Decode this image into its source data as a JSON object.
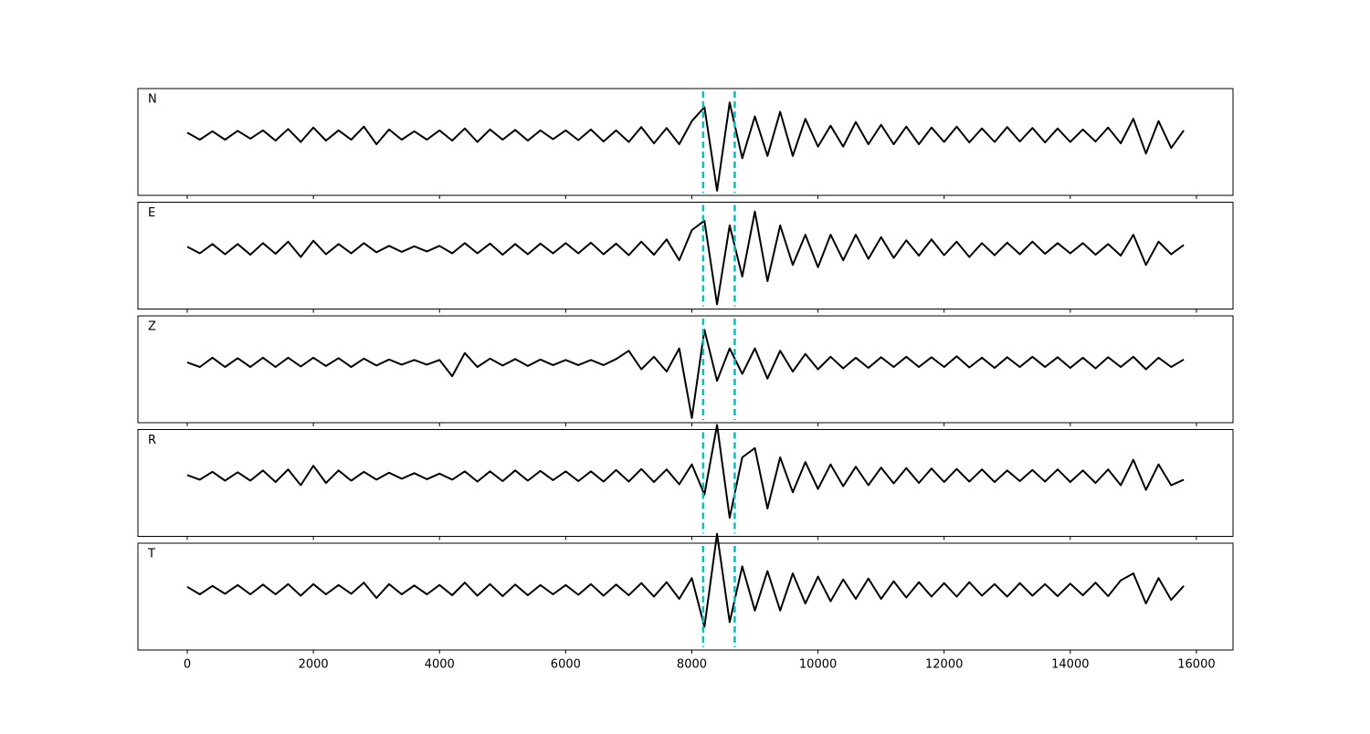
{
  "chart_data": {
    "type": "line",
    "subplots": true,
    "color": "#000000",
    "xlim": [
      -782,
      16580
    ],
    "xticks": [
      0,
      2000,
      4000,
      6000,
      8000,
      10000,
      12000,
      14000,
      16000
    ],
    "ylim": [
      -1.3,
      1.0
    ],
    "vlines": {
      "values": [
        8180,
        8680
      ],
      "color": "#00bfbf",
      "style": "dashed"
    },
    "x": [
      0,
      200,
      400,
      600,
      800,
      1000,
      1200,
      1400,
      1600,
      1800,
      2000,
      2200,
      2400,
      2600,
      2800,
      3000,
      3200,
      3400,
      3600,
      3800,
      4000,
      4200,
      4400,
      4600,
      4800,
      5000,
      5200,
      5400,
      5600,
      5800,
      6000,
      6200,
      6400,
      6600,
      6800,
      7000,
      7200,
      7400,
      7600,
      7800,
      8000,
      8200,
      8400,
      8600,
      8800,
      9000,
      9200,
      9400,
      9600,
      9800,
      10000,
      10200,
      10400,
      10600,
      10800,
      11000,
      11200,
      11400,
      11600,
      11800,
      12000,
      12200,
      12400,
      12600,
      12800,
      13000,
      13200,
      13400,
      13600,
      13800,
      14000,
      14200,
      14400,
      14600,
      14800,
      15000,
      15200,
      15400,
      15600,
      15800
    ],
    "series": [
      {
        "name": "N",
        "values": [
          0.05,
          -0.1,
          0.08,
          -0.1,
          0.09,
          -0.08,
          0.1,
          -0.12,
          0.13,
          -0.15,
          0.16,
          -0.12,
          0.1,
          -0.1,
          0.18,
          -0.2,
          0.12,
          -0.1,
          0.08,
          -0.1,
          0.1,
          -0.12,
          0.14,
          -0.15,
          0.12,
          -0.1,
          0.11,
          -0.12,
          0.1,
          -0.09,
          0.1,
          -0.11,
          0.12,
          -0.14,
          0.1,
          -0.15,
          0.17,
          -0.18,
          0.15,
          -0.2,
          0.3,
          0.6,
          -1.2,
          0.7,
          -0.5,
          0.4,
          -0.45,
          0.5,
          -0.45,
          0.35,
          -0.25,
          0.2,
          -0.25,
          0.28,
          -0.2,
          0.22,
          -0.2,
          0.18,
          -0.2,
          0.16,
          -0.15,
          0.18,
          -0.16,
          0.14,
          -0.15,
          0.17,
          -0.14,
          0.15,
          -0.16,
          0.14,
          -0.15,
          0.12,
          -0.14,
          0.16,
          -0.18,
          0.35,
          -0.4,
          0.3,
          -0.28,
          0.1
        ]
      },
      {
        "name": "E",
        "values": [
          0.04,
          -0.1,
          0.1,
          -0.12,
          0.1,
          -0.13,
          0.12,
          -0.11,
          0.15,
          -0.18,
          0.17,
          -0.12,
          0.1,
          -0.1,
          0.12,
          -0.08,
          0.06,
          -0.07,
          0.05,
          -0.06,
          0.06,
          -0.1,
          0.12,
          -0.1,
          0.11,
          -0.13,
          0.1,
          -0.12,
          0.11,
          -0.1,
          0.12,
          -0.1,
          0.13,
          -0.12,
          0.11,
          -0.14,
          0.15,
          -0.13,
          0.2,
          -0.25,
          0.4,
          0.6,
          -1.2,
          0.5,
          -0.6,
          0.8,
          -0.7,
          0.5,
          -0.35,
          0.3,
          -0.4,
          0.3,
          -0.25,
          0.3,
          -0.22,
          0.25,
          -0.2,
          0.18,
          -0.15,
          0.2,
          -0.14,
          0.15,
          -0.18,
          0.12,
          -0.14,
          0.13,
          -0.12,
          0.15,
          -0.11,
          0.12,
          -0.1,
          0.12,
          -0.13,
          0.1,
          -0.15,
          0.3,
          -0.35,
          0.15,
          -0.12,
          0.08
        ]
      },
      {
        "name": "Z",
        "values": [
          0.0,
          -0.1,
          0.1,
          -0.1,
          0.09,
          -0.1,
          0.1,
          -0.1,
          0.1,
          -0.09,
          0.1,
          -0.08,
          0.09,
          -0.1,
          0.08,
          -0.07,
          0.06,
          -0.05,
          0.05,
          -0.05,
          0.05,
          -0.3,
          0.2,
          -0.1,
          0.08,
          -0.07,
          0.07,
          -0.08,
          0.06,
          -0.06,
          0.05,
          -0.06,
          0.05,
          -0.06,
          0.07,
          0.25,
          -0.15,
          0.12,
          -0.2,
          0.3,
          -1.2,
          0.7,
          -0.4,
          0.3,
          -0.25,
          0.3,
          -0.35,
          0.25,
          -0.2,
          0.18,
          -0.15,
          0.12,
          -0.13,
          0.1,
          -0.12,
          0.11,
          -0.1,
          0.12,
          -0.1,
          0.11,
          -0.1,
          0.13,
          -0.11,
          0.1,
          -0.12,
          0.11,
          -0.1,
          0.12,
          -0.1,
          0.11,
          -0.12,
          0.1,
          -0.13,
          0.11,
          -0.1,
          0.12,
          -0.15,
          0.1,
          -0.1,
          0.06
        ]
      },
      {
        "name": "R",
        "values": [
          0.02,
          -0.08,
          0.09,
          -0.1,
          0.08,
          -0.1,
          0.12,
          -0.13,
          0.14,
          -0.2,
          0.22,
          -0.15,
          0.12,
          -0.1,
          0.09,
          -0.08,
          0.07,
          -0.06,
          0.06,
          -0.07,
          0.05,
          -0.08,
          0.1,
          -0.12,
          0.1,
          -0.11,
          0.12,
          -0.1,
          0.11,
          -0.09,
          0.1,
          -0.11,
          0.1,
          -0.12,
          0.13,
          -0.12,
          0.15,
          -0.13,
          0.14,
          -0.18,
          0.25,
          -0.4,
          1.1,
          -0.9,
          0.4,
          0.6,
          -0.7,
          0.4,
          -0.35,
          0.3,
          -0.28,
          0.25,
          -0.22,
          0.2,
          -0.2,
          0.18,
          -0.16,
          0.17,
          -0.15,
          0.16,
          -0.13,
          0.15,
          -0.12,
          0.14,
          -0.13,
          0.12,
          -0.11,
          0.13,
          -0.12,
          0.14,
          -0.13,
          0.12,
          -0.15,
          0.14,
          -0.2,
          0.35,
          -0.3,
          0.25,
          -0.2,
          -0.08
        ]
      },
      {
        "name": "T",
        "values": [
          0.06,
          -0.1,
          0.08,
          -0.09,
          0.1,
          -0.1,
          0.11,
          -0.1,
          0.12,
          -0.13,
          0.12,
          -0.1,
          0.1,
          -0.09,
          0.15,
          -0.18,
          0.12,
          -0.1,
          0.09,
          -0.1,
          0.1,
          -0.12,
          0.15,
          -0.13,
          0.12,
          -0.14,
          0.11,
          -0.12,
          0.1,
          -0.1,
          0.1,
          -0.11,
          0.12,
          -0.13,
          0.11,
          -0.12,
          0.14,
          -0.15,
          0.16,
          -0.2,
          0.25,
          -0.8,
          1.2,
          -0.7,
          0.5,
          -0.45,
          0.4,
          -0.45,
          0.35,
          -0.3,
          0.28,
          -0.25,
          0.22,
          -0.2,
          0.24,
          -0.2,
          0.18,
          -0.17,
          0.16,
          -0.15,
          0.14,
          -0.15,
          0.16,
          -0.13,
          0.12,
          -0.15,
          0.14,
          -0.13,
          0.12,
          -0.14,
          0.13,
          -0.12,
          0.15,
          -0.14,
          0.2,
          0.35,
          -0.3,
          0.25,
          -0.22,
          0.08
        ]
      }
    ]
  }
}
